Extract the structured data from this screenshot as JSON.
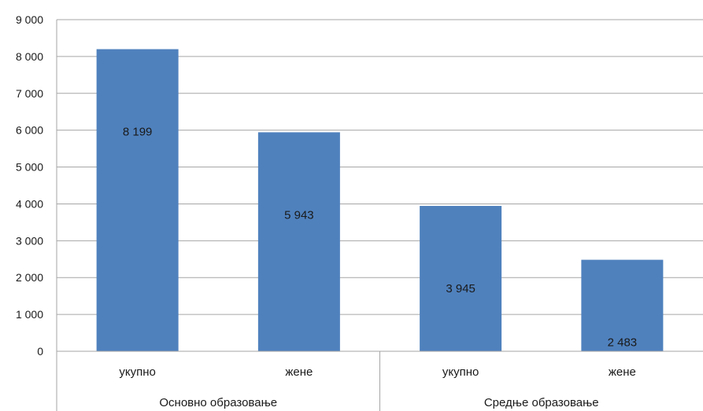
{
  "chart_data": {
    "type": "bar",
    "categories": [
      "укупно",
      "жене",
      "укупно",
      "жене"
    ],
    "groups": [
      {
        "label": "Основно образовање",
        "start": 0,
        "count": 2
      },
      {
        "label": "Средње образовање",
        "start": 2,
        "count": 2
      }
    ],
    "values": [
      8199,
      5943,
      3945,
      2483
    ],
    "data_labels": [
      "8 199",
      "5 943",
      "3 945",
      "2 483"
    ],
    "ylim": [
      0,
      9000
    ],
    "yticks": [
      0,
      1000,
      2000,
      3000,
      4000,
      5000,
      6000,
      7000,
      8000,
      9000
    ],
    "ytick_labels": [
      "0",
      "1 000",
      "2 000",
      "3 000",
      "4 000",
      "5 000",
      "6 000",
      "7 000",
      "8 000",
      "9 000"
    ],
    "grid": true,
    "bar_color": "#4f81bd",
    "grid_color": "#a6a6a6",
    "title": "",
    "xlabel": "",
    "ylabel": ""
  }
}
